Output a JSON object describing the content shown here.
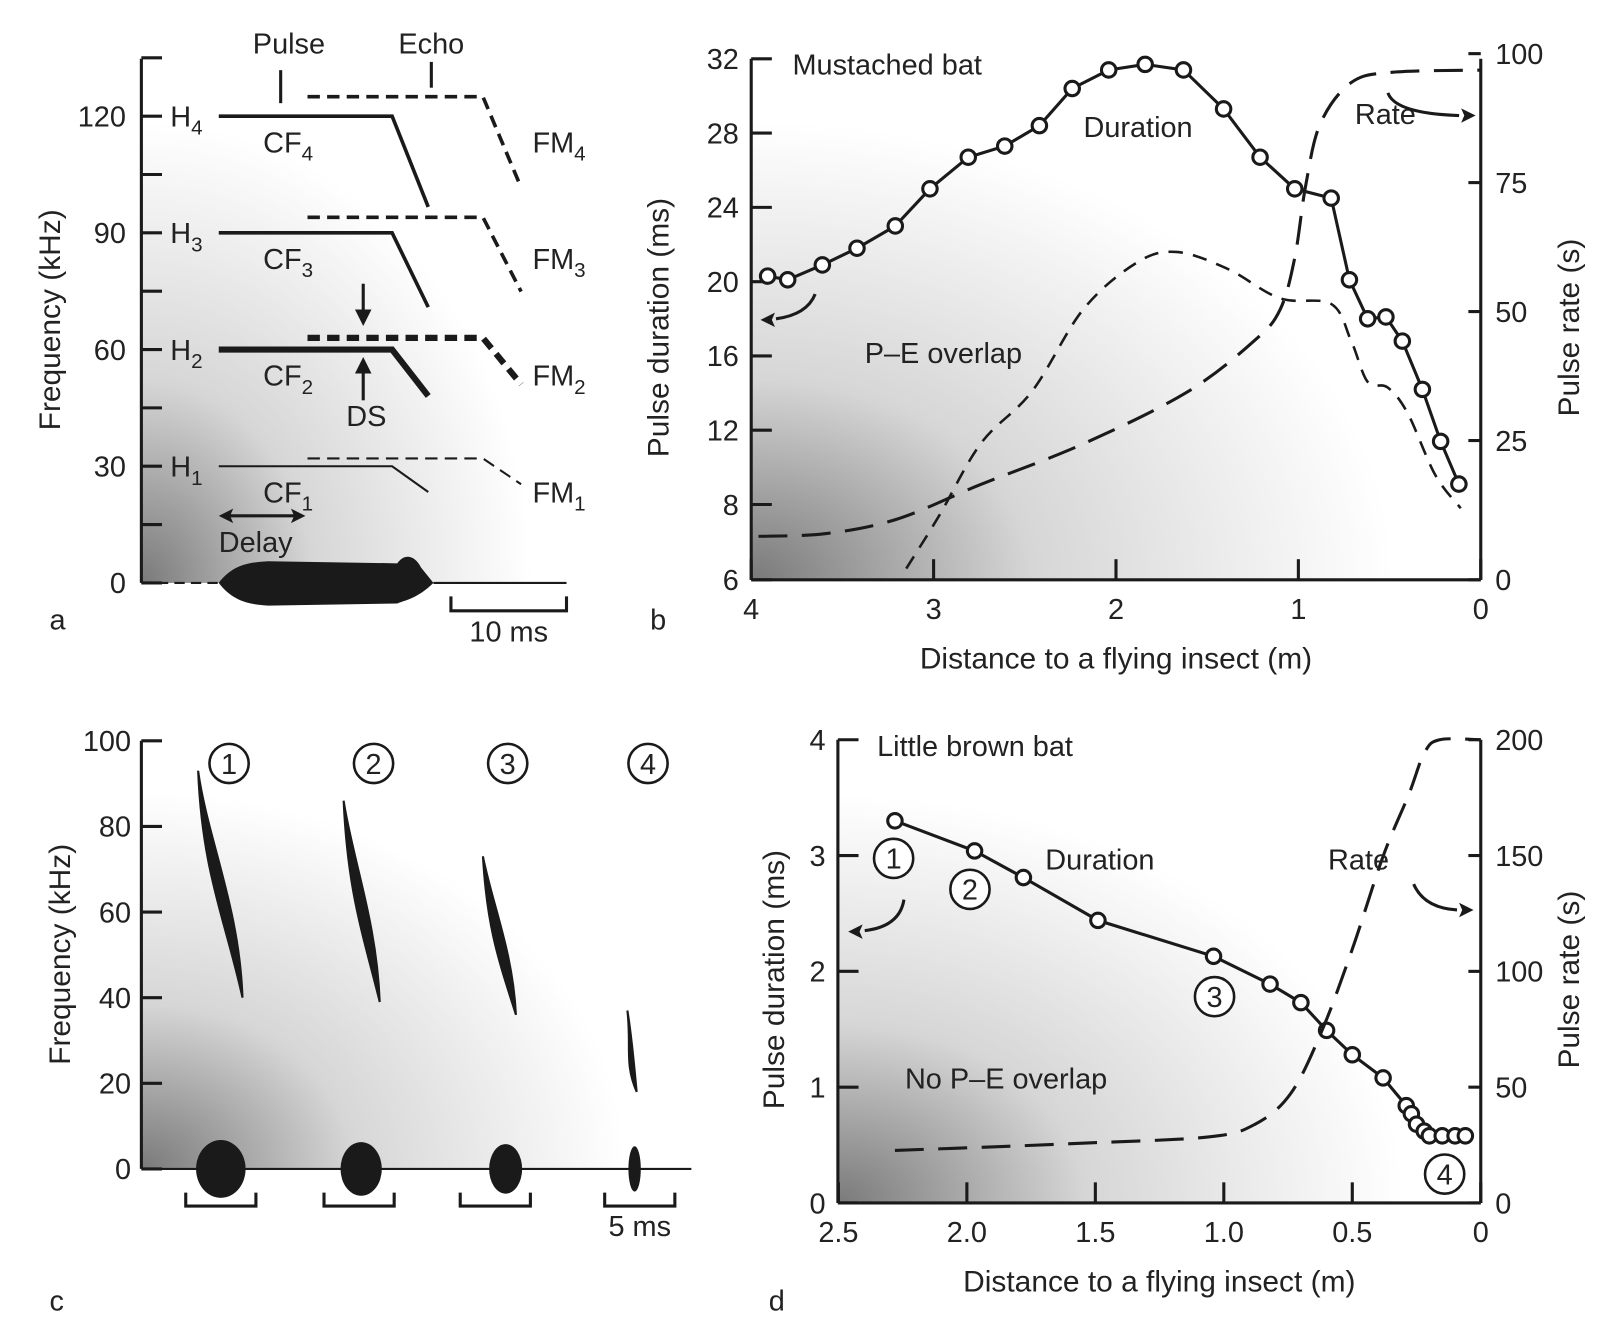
{
  "panel_letters": {
    "a": "a",
    "b": "b",
    "c": "c",
    "d": "d"
  },
  "chart_data": [
    {
      "panel": "a",
      "type": "line",
      "title": "",
      "ylabel": "Frequency (kHz)",
      "yticks": [
        0,
        30,
        60,
        90,
        120
      ],
      "ylim": [
        0,
        130
      ],
      "labels": {
        "pulse": "Pulse",
        "echo": "Echo",
        "ds": "DS",
        "delay": "Delay",
        "scale": "10 ms"
      },
      "harmonics": [
        {
          "h": "H",
          "n": "4",
          "cf": "CF",
          "fm": "FM",
          "khz": 120,
          "echo_khz": 125
        },
        {
          "h": "H",
          "n": "3",
          "cf": "CF",
          "fm": "FM",
          "khz": 90,
          "echo_khz": 94
        },
        {
          "h": "H",
          "n": "2",
          "cf": "CF",
          "fm": "FM",
          "khz": 60,
          "echo_khz": 63
        },
        {
          "h": "H",
          "n": "1",
          "cf": "CF",
          "fm": "FM",
          "khz": 30,
          "echo_khz": 32
        }
      ]
    },
    {
      "panel": "b",
      "type": "line",
      "title": "Mustached bat",
      "xlabel": "Distance to a flying insect (m)",
      "ylabel": "Pulse duration (ms)",
      "y2label": "Pulse rate (s)",
      "xticks": [
        4,
        3,
        2,
        1,
        0
      ],
      "yticks": [
        6,
        8,
        12,
        16,
        20,
        24,
        28,
        32
      ],
      "y2ticks": [
        0,
        25,
        50,
        75,
        100
      ],
      "xlim": [
        4,
        0
      ],
      "ylim": [
        6,
        32
      ],
      "y2lim": [
        0,
        100
      ],
      "annotations": {
        "duration": "Duration",
        "rate": "Rate",
        "overlap": "P–E overlap"
      },
      "series": [
        {
          "name": "Duration",
          "axis": "left",
          "style": "solid-markers",
          "x": [
            3.91,
            3.8,
            3.61,
            3.42,
            3.21,
            3.02,
            2.81,
            2.61,
            2.42,
            2.24,
            2.04,
            1.84,
            1.63,
            1.41,
            1.21,
            1.02,
            0.82,
            0.72,
            0.62,
            0.52,
            0.43,
            0.32,
            0.22,
            0.12
          ],
          "y": [
            20.3,
            20.1,
            20.9,
            21.8,
            23.0,
            25.0,
            26.7,
            27.3,
            28.4,
            30.4,
            31.4,
            31.7,
            31.4,
            29.3,
            26.7,
            25.0,
            24.5,
            20.1,
            18.0,
            18.1,
            16.8,
            14.2,
            11.4,
            9.1
          ]
        },
        {
          "name": "Rate",
          "axis": "right",
          "style": "long-dash",
          "x": [
            3.96,
            3.59,
            3.2,
            2.75,
            2.18,
            1.61,
            1.24,
            1.1,
            1.02,
            0.96,
            0.88,
            0.71,
            0.48,
            0.0
          ],
          "y": [
            7.8,
            8.3,
            10.9,
            17,
            24.4,
            34.4,
            44.4,
            50.4,
            60.4,
            74.4,
            86.4,
            94.4,
            96.4,
            96.8
          ]
        },
        {
          "name": "P–E overlap",
          "axis": "left",
          "style": "short-dash",
          "x": [
            3.15,
            2.97,
            2.74,
            2.46,
            2.18,
            1.89,
            1.67,
            1.39,
            1.1,
            0.82,
            0.71,
            0.62,
            0.51,
            0.4,
            0.25,
            0.11
          ],
          "y": [
            6.3,
            7.7,
            11.3,
            14.1,
            18.5,
            21.0,
            21.6,
            20.7,
            19.1,
            18.8,
            16.8,
            14.6,
            14.3,
            12.9,
            9.6,
            7.9
          ]
        }
      ]
    },
    {
      "panel": "c",
      "type": "scatter",
      "title": "",
      "ylabel": "Frequency (kHz)",
      "yticks": [
        0,
        20,
        40,
        60,
        80,
        100
      ],
      "ylim": [
        0,
        100
      ],
      "scale": "5 ms",
      "calls": [
        {
          "label": "1",
          "fmax": 93,
          "fmin": 40
        },
        {
          "label": "2",
          "fmax": 86,
          "fmin": 39
        },
        {
          "label": "3",
          "fmax": 73,
          "fmin": 36
        },
        {
          "label": "4",
          "fmax": 37,
          "fmin": 18
        }
      ]
    },
    {
      "panel": "d",
      "type": "line",
      "title": "Little brown bat",
      "xlabel": "Distance to a flying insect (m)",
      "ylabel": "Pulse duration (ms)",
      "y2label": "Pulse rate (s)",
      "xticks": [
        "2.5",
        "2.0",
        "1.5",
        "1.0",
        "0.5",
        "0"
      ],
      "yticks": [
        0,
        1,
        2,
        3,
        4
      ],
      "y2ticks": [
        0,
        50,
        100,
        150,
        200
      ],
      "xlim": [
        2.5,
        0
      ],
      "ylim": [
        0,
        4
      ],
      "y2lim": [
        0,
        200
      ],
      "annotations": {
        "duration": "Duration",
        "rate": "Rate",
        "overlap": "No P–E overlap"
      },
      "markers": [
        "1",
        "2",
        "3",
        "4"
      ],
      "series": [
        {
          "name": "Duration",
          "axis": "left",
          "style": "solid-markers",
          "x": [
            2.28,
            1.97,
            1.78,
            1.49,
            1.04,
            0.82,
            0.7,
            0.6,
            0.5,
            0.38,
            0.29,
            0.27,
            0.25,
            0.22,
            0.2,
            0.15,
            0.1,
            0.06
          ],
          "y": [
            3.3,
            3.04,
            2.81,
            2.44,
            2.13,
            1.89,
            1.73,
            1.49,
            1.28,
            1.08,
            0.84,
            0.77,
            0.68,
            0.62,
            0.58,
            0.58,
            0.58,
            0.58
          ]
        },
        {
          "name": "Rate",
          "axis": "right",
          "style": "long-dash",
          "x": [
            2.28,
            1.93,
            1.55,
            1.06,
            0.88,
            0.74,
            0.62,
            0.5,
            0.38,
            0.28,
            0.22,
            0.16,
            0.0
          ],
          "y": [
            22.7,
            24.1,
            25.8,
            28.5,
            33.9,
            47.2,
            73.9,
            109.6,
            149.7,
            176.4,
            194.2,
            200,
            200
          ]
        }
      ]
    }
  ]
}
